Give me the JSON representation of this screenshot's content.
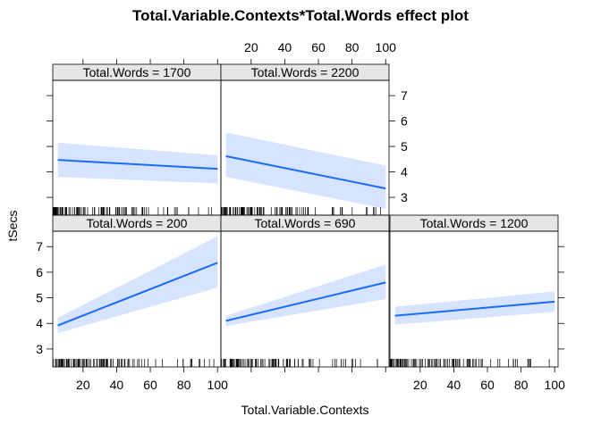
{
  "chart_data": {
    "type": "line",
    "title": "Total.Variable.Contexts*Total.Words effect plot",
    "xlabel": "Total.Variable.Contexts",
    "ylabel": "tSecs",
    "xlim": [
      2,
      102
    ],
    "ylim": [
      2.3,
      7.6
    ],
    "x_ticks": [
      20,
      40,
      60,
      80,
      100
    ],
    "y_ticks": [
      3,
      4,
      5,
      6,
      7
    ],
    "grid": false,
    "line_color": "#1a6cff",
    "band_color": "#d6e4ff",
    "rug_color": "#000000",
    "panels": [
      {
        "strip": "Total.Words = 200",
        "x": [
          5,
          100
        ],
        "y": [
          3.92,
          6.37
        ],
        "lower": [
          3.62,
          5.4
        ],
        "upper": [
          4.22,
          7.4
        ]
      },
      {
        "strip": "Total.Words = 690",
        "x": [
          5,
          100
        ],
        "y": [
          4.1,
          5.6
        ],
        "lower": [
          3.9,
          4.95
        ],
        "upper": [
          4.3,
          6.3
        ]
      },
      {
        "strip": "Total.Words = 1200",
        "x": [
          5,
          100
        ],
        "y": [
          4.3,
          4.85
        ],
        "lower": [
          3.95,
          4.45
        ],
        "upper": [
          4.65,
          5.25
        ]
      },
      {
        "strip": "Total.Words = 1700",
        "x": [
          5,
          100
        ],
        "y": [
          4.47,
          4.12
        ],
        "lower": [
          3.8,
          3.55
        ],
        "upper": [
          5.15,
          4.65
        ]
      },
      {
        "strip": "Total.Words = 2200",
        "x": [
          5,
          100
        ],
        "y": [
          4.62,
          3.35
        ],
        "lower": [
          3.8,
          2.55
        ],
        "upper": [
          5.55,
          4.25
        ]
      }
    ]
  }
}
